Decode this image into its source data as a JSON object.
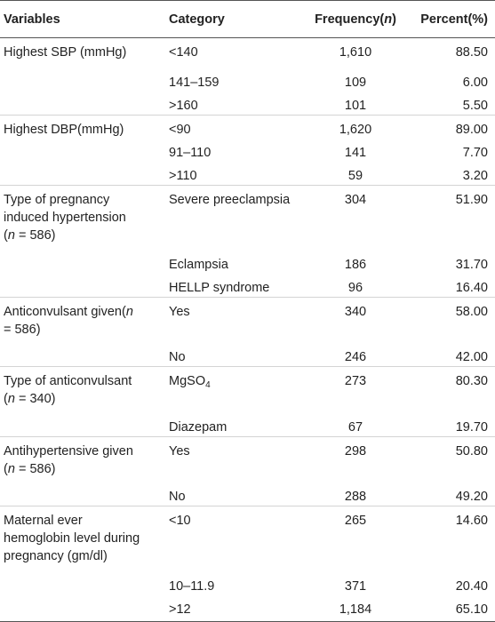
{
  "headers": {
    "variables": "Variables",
    "category": "Category",
    "frequency": "Frequency(",
    "frequency_n": "n",
    "frequency_close": ")",
    "percent": "Percent(%)"
  },
  "groups": [
    {
      "label": "Highest SBP (mmHg)",
      "rows": [
        {
          "category": "<140",
          "frequency": "1,610",
          "percent": "88.50"
        },
        {
          "category": "141–159",
          "frequency": "109",
          "percent": "6.00"
        },
        {
          "category": ">160",
          "frequency": "101",
          "percent": "5.50"
        }
      ]
    },
    {
      "label": "Highest DBP(mmHg)",
      "rows": [
        {
          "category": "<90",
          "frequency": "1,620",
          "percent": "89.00"
        },
        {
          "category": "91–110",
          "frequency": "141",
          "percent": "7.70"
        },
        {
          "category": ">110",
          "frequency": "59",
          "percent": "3.20"
        }
      ]
    },
    {
      "label_line1": "Type of pregnancy",
      "label_line2": "induced hypertension",
      "label_n_open": "(",
      "label_n": "n",
      "label_n_value": " = 586)",
      "rows": [
        {
          "category": "Severe preeclampsia",
          "frequency": "304",
          "percent": "51.90"
        },
        {
          "category": "Eclampsia",
          "frequency": "186",
          "percent": "31.70"
        },
        {
          "category": "HELLP syndrome",
          "frequency": "96",
          "percent": "16.40"
        }
      ]
    },
    {
      "label_line1": "Anticonvulsant given(",
      "label_n": "n",
      "label_n_value": "= 586)",
      "rows": [
        {
          "category": "Yes",
          "frequency": "340",
          "percent": "58.00"
        },
        {
          "category": "No",
          "frequency": "246",
          "percent": "42.00"
        }
      ]
    },
    {
      "label_line1": "Type of anticonvulsant",
      "label_n_open": "(",
      "label_n": "n",
      "label_n_value": " = 340)",
      "rows": [
        {
          "category": "MgSO",
          "category_sub": "4",
          "frequency": "273",
          "percent": "80.30"
        },
        {
          "category": "Diazepam",
          "frequency": "67",
          "percent": "19.70"
        }
      ]
    },
    {
      "label_line1": "Antihypertensive given",
      "label_n_open": "(",
      "label_n": "n",
      "label_n_value": " = 586)",
      "rows": [
        {
          "category": "Yes",
          "frequency": "298",
          "percent": "50.80"
        },
        {
          "category": "No",
          "frequency": "288",
          "percent": "49.20"
        }
      ]
    },
    {
      "label_line1": "Maternal ever",
      "label_line2": "hemoglobin level during",
      "label_line3": "pregnancy (gm/dl)",
      "rows": [
        {
          "category": "<10",
          "frequency": "265",
          "percent": "14.60"
        },
        {
          "category": "10–11.9",
          "frequency": "371",
          "percent": "20.40"
        },
        {
          "category": ">12",
          "frequency": "1,184",
          "percent": "65.10"
        }
      ]
    }
  ]
}
